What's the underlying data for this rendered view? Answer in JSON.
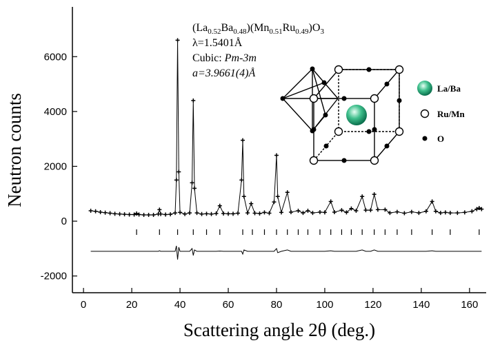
{
  "chart_data": {
    "type": "diffraction",
    "xlabel": "Scattering angle 2θ (deg.)",
    "ylabel": "Neutron counts",
    "xlim": [
      -4.6,
      166.9
    ],
    "ylim": [
      -2610,
      7815
    ],
    "xticks": [
      0,
      20,
      40,
      60,
      80,
      100,
      120,
      140,
      160
    ],
    "yticks": [
      -2000,
      0,
      2000,
      4000,
      6000
    ],
    "x": [
      3,
      5,
      7,
      9,
      11,
      13,
      15,
      17,
      19,
      21,
      22,
      23,
      25,
      27,
      29,
      31,
      31.5,
      32,
      34,
      36,
      38,
      38.5,
      39,
      39.5,
      40,
      42,
      44,
      45,
      45.5,
      46,
      47,
      49,
      51,
      53,
      55,
      56.5,
      58,
      60,
      62,
      64,
      65.5,
      66,
      66.5,
      68,
      69.5,
      71,
      73,
      75,
      77,
      79,
      80,
      80.5,
      82,
      84.5,
      86,
      89,
      91,
      93,
      95,
      98,
      100,
      102.5,
      104,
      107,
      109,
      111,
      113,
      115.5,
      117,
      119,
      120.5,
      122,
      125,
      127,
      130,
      133,
      136,
      139,
      142,
      144.5,
      146,
      148,
      150,
      152,
      155,
      158,
      161,
      163,
      164,
      165
    ],
    "series": [
      {
        "color": "#000000",
        "values": [
          380,
          360,
          330,
          310,
          290,
          270,
          260,
          250,
          240,
          240,
          280,
          240,
          230,
          230,
          230,
          260,
          420,
          260,
          240,
          250,
          300,
          1500,
          6600,
          1800,
          320,
          260,
          300,
          1400,
          4400,
          1200,
          300,
          260,
          270,
          260,
          280,
          560,
          280,
          270,
          270,
          290,
          1500,
          2950,
          900,
          300,
          640,
          290,
          280,
          320,
          290,
          700,
          2400,
          900,
          320,
          1050,
          330,
          380,
          300,
          380,
          300,
          330,
          320,
          720,
          330,
          400,
          320,
          460,
          380,
          900,
          400,
          400,
          980,
          420,
          420,
          300,
          340,
          290,
          340,
          300,
          360,
          720,
          360,
          300,
          320,
          300,
          300,
          320,
          360,
          440,
          480,
          440
        ]
      },
      {
        "color": "#000000",
        "values": [
          -1100,
          -1100,
          -1100,
          -1100,
          -1100,
          -1100,
          -1100,
          -1100,
          -1100,
          -1100,
          -1100,
          -1100,
          -1100,
          -1100,
          -1100,
          -1100,
          -1080,
          -1100,
          -1100,
          -1100,
          -1100,
          -900,
          -1400,
          -950,
          -1100,
          -1100,
          -1100,
          -1000,
          -1250,
          -1050,
          -1100,
          -1100,
          -1100,
          -1100,
          -1100,
          -1090,
          -1100,
          -1100,
          -1100,
          -1100,
          -1100,
          -1200,
          -1050,
          -1100,
          -1100,
          -1100,
          -1100,
          -1100,
          -1100,
          -1100,
          -1000,
          -1150,
          -1100,
          -1050,
          -1100,
          -1100,
          -1100,
          -1100,
          -1100,
          -1100,
          -1100,
          -1080,
          -1100,
          -1100,
          -1100,
          -1100,
          -1100,
          -1050,
          -1100,
          -1100,
          -1050,
          -1100,
          -1100,
          -1100,
          -1100,
          -1100,
          -1100,
          -1100,
          -1100,
          -1080,
          -1100,
          -1100,
          -1100,
          -1100,
          -1100,
          -1100,
          -1100,
          -1100,
          -1100,
          -1100
        ]
      }
    ],
    "bragg_positions": [
      22,
      31.5,
      39,
      45.5,
      51,
      56.5,
      66,
      70,
      75,
      80,
      84.5,
      89,
      93,
      98,
      102.5,
      107,
      111,
      115.5,
      120.5,
      125,
      130,
      136,
      144.5,
      152,
      164
    ],
    "bragg_level": -400,
    "formula": [
      "(La",
      "0.52",
      "Ba",
      "0.48",
      ")(Mn",
      "0.51",
      "Ru",
      "0.49",
      ")O",
      "3"
    ],
    "wavelength": "λ=1.5401Å",
    "symmetry_prefix": "Cubic: ",
    "space_group": "Pm-3m",
    "lattice": "a=3.9661(4)Å",
    "legend": [
      "La/Ba",
      "Ru/Mn",
      "O"
    ]
  }
}
